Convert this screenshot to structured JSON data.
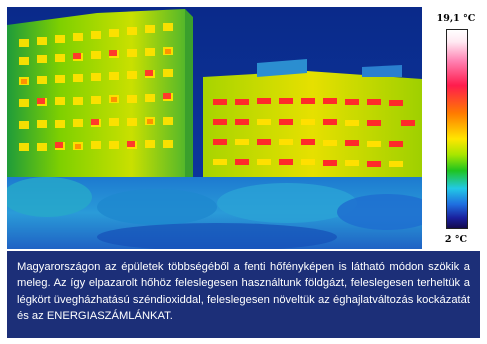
{
  "scale": {
    "max_label": "19,1 °C",
    "min_label": "2 °C"
  },
  "caption": {
    "text": "Magyarországon az épületek többségéből a fenti hőfényképen is látható módon szökik a meleg. Az így elpazarolt hőhöz feleslegesen használtunk földgázt, feleslegesen terheltük a légkört üvegházhatású széndioxiddal, feleslegesen növeltük az éghajlatváltozás kockázatát és az ENERGIASZÁMLÁNKAT."
  },
  "colors": {
    "caption_bg": "#1c2f78",
    "thermal_bg": "#0b2f8f"
  }
}
